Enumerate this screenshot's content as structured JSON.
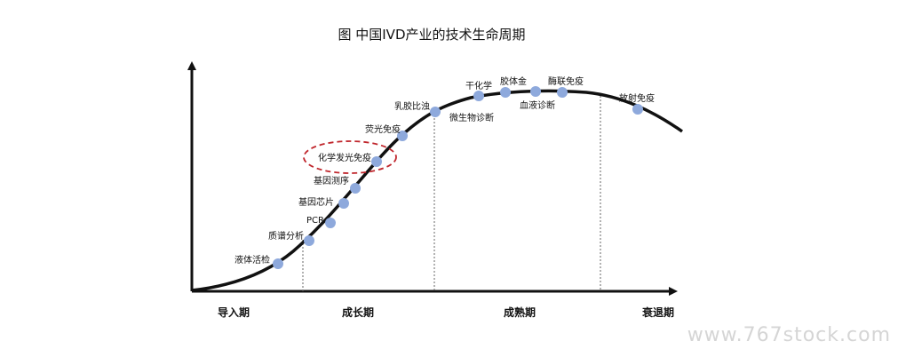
{
  "title": "图 中国IVD产业的技术生命周期",
  "phases": [
    "导入期",
    "成长期",
    "成熟期",
    "衰退期"
  ],
  "technologies": [
    {
      "name": "液体活检",
      "phase": "成长期"
    },
    {
      "name": "质谱分析",
      "phase": "成长期"
    },
    {
      "name": "PCR",
      "phase": "成长期"
    },
    {
      "name": "基因芯片",
      "phase": "成长期"
    },
    {
      "name": "基因测序",
      "phase": "成长期"
    },
    {
      "name": "化学发光免疫",
      "phase": "成长期",
      "highlighted": true
    },
    {
      "name": "荧光免疫",
      "phase": "成长期"
    },
    {
      "name": "乳胶比浊",
      "phase": "成熟期"
    },
    {
      "name": "微生物诊断",
      "phase": "成熟期"
    },
    {
      "name": "干化学",
      "phase": "成熟期"
    },
    {
      "name": "胶体金",
      "phase": "成熟期"
    },
    {
      "name": "血液诊断",
      "phase": "成熟期"
    },
    {
      "name": "酶联免疫",
      "phase": "成熟期"
    },
    {
      "name": "放射免疫",
      "phase": "衰退期"
    }
  ],
  "watermark": "www.767stock.com",
  "colors": {
    "point": "#8ea9dc",
    "highlight": "#c0262c",
    "curve": "#111111"
  }
}
